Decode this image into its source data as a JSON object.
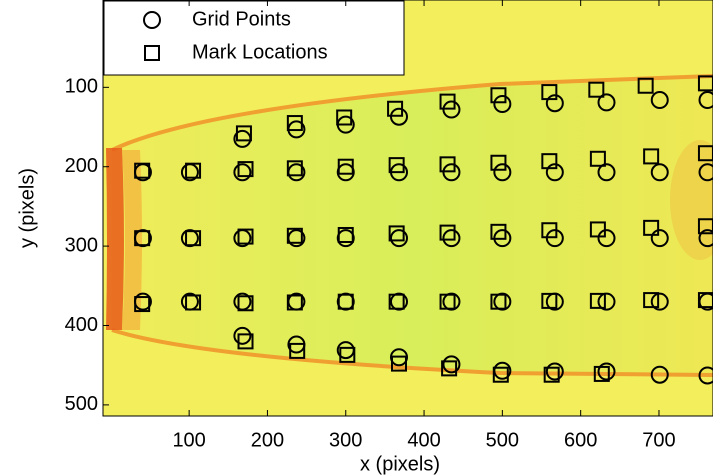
{
  "chart_data": {
    "type": "scatter",
    "x_label": "x (pixels)",
    "y_label": "y (pixels)",
    "xlim": [
      -10,
      769
    ],
    "ylim": [
      -10,
      514
    ],
    "y_reversed": true,
    "xticks": [
      100,
      200,
      300,
      400,
      500,
      600,
      700
    ],
    "yticks": [
      100,
      200,
      300,
      400,
      500
    ],
    "grid": false,
    "legend": "upper left",
    "series": [
      {
        "name": "Grid Points",
        "marker": "circle",
        "color": "#000000",
        "x": [
          41,
          101,
          168,
          237,
          300,
          368,
          435,
          500,
          567,
          633,
          701,
          762,
          41,
          101,
          168,
          237,
          300,
          368,
          435,
          500,
          567,
          633,
          701,
          762,
          41,
          101,
          168,
          237,
          300,
          368,
          435,
          500,
          567,
          633,
          701,
          762,
          168,
          237,
          300,
          368,
          435,
          500,
          567,
          633,
          701,
          762,
          168,
          237,
          300,
          368,
          435,
          500,
          567,
          633,
          701,
          762
        ],
        "values": [
          207,
          207,
          207,
          207,
          207,
          207,
          207,
          207,
          207,
          207,
          207,
          207,
          290,
          290,
          290,
          290,
          290,
          290,
          290,
          290,
          290,
          290,
          290,
          290,
          370,
          370,
          370,
          370,
          370,
          370,
          370,
          370,
          370,
          370,
          370,
          370,
          165,
          153,
          147,
          137,
          128,
          121,
          120,
          119,
          116,
          116,
          413,
          424,
          431,
          440,
          449,
          457,
          458,
          458,
          462,
          463
        ]
      },
      {
        "name": "Mark Locations",
        "marker": "square",
        "color": "#000000",
        "x": [
          40,
          105,
          172,
          235,
          300,
          365,
          430,
          495,
          560,
          622,
          690,
          760,
          40,
          105,
          172,
          235,
          300,
          365,
          430,
          495,
          560,
          622,
          690,
          760,
          40,
          105,
          172,
          235,
          300,
          365,
          430,
          495,
          560,
          622,
          690,
          760,
          170,
          235,
          298,
          363,
          430,
          495,
          560,
          620,
          683,
          760,
          172,
          238,
          302,
          368,
          432,
          498,
          563,
          627
        ],
        "values": [
          205,
          205,
          203,
          202,
          200,
          198,
          197,
          195,
          193,
          190,
          187,
          183,
          290,
          290,
          288,
          287,
          286,
          284,
          283,
          282,
          280,
          279,
          277,
          275,
          373,
          371,
          372,
          371,
          370,
          370,
          370,
          370,
          369,
          369,
          368,
          368,
          158,
          145,
          138,
          127,
          118,
          110,
          106,
          103,
          98,
          95,
          420,
          432,
          437,
          448,
          454,
          462,
          462,
          461
        ]
      }
    ]
  }
}
